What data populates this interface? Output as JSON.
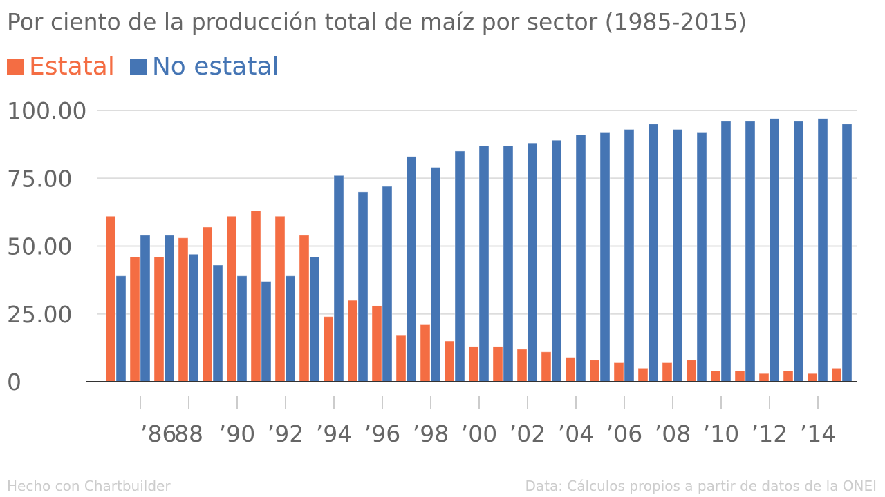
{
  "chart_data": {
    "type": "bar",
    "title": "Por ciento de la producción total de maíz por sector (1985-2015)",
    "xlabel": "",
    "ylabel": "",
    "ylim": [
      0,
      100
    ],
    "grid": true,
    "legend_position": "top-left",
    "categories": [
      1985,
      1986,
      1987,
      1988,
      1989,
      1990,
      1991,
      1992,
      1993,
      1994,
      1995,
      1996,
      1997,
      1998,
      1999,
      2000,
      2001,
      2002,
      2003,
      2004,
      2005,
      2006,
      2007,
      2008,
      2009,
      2010,
      2011,
      2012,
      2013,
      2014,
      2015
    ],
    "series": [
      {
        "name": "Estatal",
        "color": "#f46d43",
        "values": [
          61,
          46,
          46,
          53,
          57,
          61,
          63,
          61,
          54,
          24,
          30,
          28,
          17,
          21,
          15,
          13,
          13,
          12,
          11,
          9,
          8,
          7,
          5,
          7,
          8,
          4,
          4,
          3,
          4,
          3,
          5
        ]
      },
      {
        "name": "No estatal",
        "color": "#4575b4",
        "values": [
          39,
          54,
          54,
          47,
          43,
          39,
          37,
          39,
          46,
          76,
          70,
          72,
          83,
          79,
          85,
          87,
          87,
          88,
          89,
          91,
          92,
          93,
          95,
          93,
          92,
          96,
          96,
          97,
          96,
          97,
          95
        ]
      }
    ],
    "y_ticks": [
      "0",
      "25.00",
      "50.00",
      "75.00",
      "100.00"
    ],
    "y_tick_values": [
      0,
      25,
      50,
      75,
      100
    ],
    "x_ticks": [
      "’86",
      "88",
      "’90",
      "’92",
      "’94",
      "’96",
      "’98",
      "’00",
      "’02",
      "’04",
      "’06",
      "’08",
      "’10",
      "’12",
      "’14"
    ],
    "x_tick_years": [
      1986,
      1988,
      1990,
      1992,
      1994,
      1996,
      1998,
      2000,
      2002,
      2004,
      2006,
      2008,
      2010,
      2012,
      2014
    ]
  },
  "footer": {
    "credit": "Hecho con Chartbuilder",
    "source": "Data: Cálculos propios a partir de datos de la ONEI"
  }
}
